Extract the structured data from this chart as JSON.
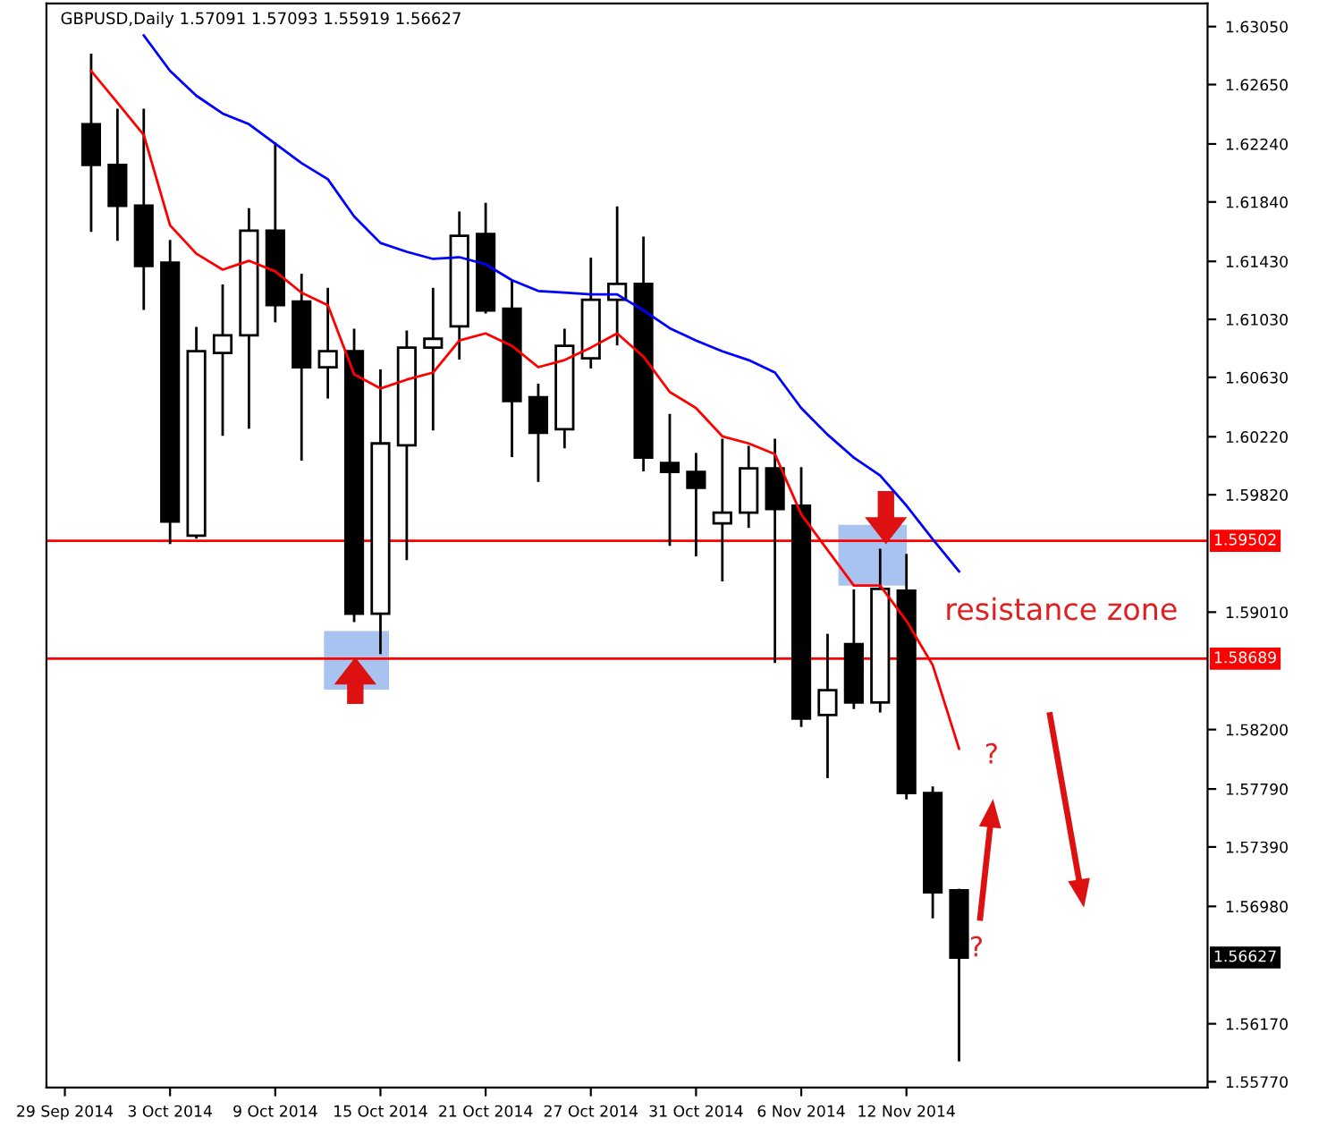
{
  "chart_data": {
    "type": "candlestick",
    "title": "GBPUSD,Daily 1.57091 1.57093 1.55919 1.56627",
    "categories": [
      "29 Sep 2014",
      null,
      null,
      null,
      "3 Oct 2014",
      null,
      null,
      null,
      "9 Oct 2014",
      null,
      null,
      null,
      "15 Oct 2014",
      null,
      null,
      null,
      "21 Oct 2014",
      null,
      null,
      null,
      "27 Oct 2014",
      null,
      null,
      null,
      "31 Oct 2014",
      null,
      null,
      null,
      "6 Nov 2014",
      null,
      null,
      null,
      "12 Nov 2014",
      null,
      null
    ],
    "ohlc": [
      null,
      [
        1.62377,
        1.62854,
        1.61642,
        1.62095
      ],
      [
        1.62095,
        1.62475,
        1.61581,
        1.61814
      ],
      [
        1.61814,
        1.62475,
        1.61104,
        1.61398
      ],
      [
        1.61422,
        1.61569,
        1.59488,
        1.59635
      ],
      [
        1.59537,
        1.60969,
        1.59525,
        1.6081
      ],
      [
        1.60798,
        1.61263,
        1.60235,
        1.6092
      ],
      [
        1.6092,
        1.61789,
        1.60284,
        1.61642
      ],
      [
        1.61642,
        1.62242,
        1.61018,
        1.61128
      ],
      [
        1.61153,
        1.61336,
        1.60064,
        1.607
      ],
      [
        1.607,
        1.61239,
        1.60492,
        1.6081
      ],
      [
        1.6081,
        1.60957,
        1.5895,
        1.58999
      ],
      [
        1.58999,
        1.60676,
        1.58729,
        1.60174
      ],
      [
        1.60161,
        1.60945,
        1.59378,
        1.60835
      ],
      [
        1.60835,
        1.61239,
        1.60272,
        1.60896
      ],
      [
        1.60981,
        1.61765,
        1.60761,
        1.61606
      ],
      [
        1.61618,
        1.61826,
        1.61079,
        1.61092
      ],
      [
        1.61104,
        1.61287,
        1.60088,
        1.60467
      ],
      [
        1.60492,
        1.60578,
        1.59917,
        1.60247
      ],
      [
        1.60272,
        1.60957,
        1.60149,
        1.60847
      ],
      [
        1.60761,
        1.61447,
        1.607,
        1.61165
      ],
      [
        1.61165,
        1.61801,
        1.60859,
        1.61275
      ],
      [
        1.61275,
        1.61593,
        1.5999,
        1.60076
      ],
      [
        1.60039,
        1.60369,
        1.59476,
        1.59978
      ],
      [
        1.59978,
        1.601,
        1.59403,
        1.59868
      ],
      [
        1.59623,
        1.60198,
        1.59231,
        1.59696
      ],
      [
        1.59696,
        1.60149,
        1.596,
        1.60002
      ],
      [
        1.60002,
        1.60198,
        1.58668,
        1.59721
      ],
      [
        1.59745,
        1.60002,
        1.58227,
        1.58276
      ],
      [
        1.58301,
        1.58852,
        1.57873,
        1.58472
      ],
      [
        1.5879,
        1.59158,
        1.5835,
        1.58387
      ],
      [
        1.58387,
        1.59439,
        1.58326,
        1.5917
      ],
      [
        1.59158,
        1.59403,
        1.57726,
        1.57762
      ],
      [
        1.57762,
        1.57799,
        1.56906,
        1.57077
      ],
      [
        1.57091,
        1.57093,
        1.55919,
        1.56627
      ]
    ],
    "series": [
      {
        "type": "line",
        "color": "#ff0000",
        "values": [
          null,
          1.62744,
          1.62524,
          1.62303,
          1.61679,
          1.61483,
          1.61373,
          1.61434,
          1.61361,
          1.61214,
          1.61128,
          1.60651,
          1.60553,
          1.60614,
          1.60663,
          1.60884,
          1.60933,
          1.60847,
          1.607,
          1.60749,
          1.60835,
          1.60933,
          1.60773,
          1.60529,
          1.60418,
          1.60223,
          1.60174,
          1.601,
          1.59684,
          1.59439,
          1.59194,
          1.59194,
          1.5895,
          1.58644,
          1.58068
        ]
      },
      {
        "type": "line",
        "color": "#0000ff",
        "values": [
          null,
          null,
          null,
          1.62989,
          1.62744,
          1.62573,
          1.6245,
          1.62377,
          1.62242,
          1.62108,
          1.61997,
          1.6174,
          1.61557,
          1.61496,
          1.61447,
          1.61459,
          1.6141,
          1.613,
          1.61226,
          1.61214,
          1.61202,
          1.61202,
          1.61092,
          1.60969,
          1.60884,
          1.6081,
          1.60749,
          1.60663,
          1.60418,
          1.60235,
          1.60076,
          1.59953,
          1.59745,
          1.59513,
          1.59292
        ]
      }
    ],
    "ylim": [
      1.5573,
      1.6321
    ],
    "yticks": [
      {
        "value": 1.6305,
        "label": "1.63050"
      },
      {
        "value": 1.6265,
        "label": "1.62650"
      },
      {
        "value": 1.6224,
        "label": "1.62240"
      },
      {
        "value": 1.6184,
        "label": "1.61840"
      },
      {
        "value": 1.6143,
        "label": "1.61430"
      },
      {
        "value": 1.6103,
        "label": "1.61030"
      },
      {
        "value": 1.6063,
        "label": "1.60630"
      },
      {
        "value": 1.6022,
        "label": "1.60220"
      },
      {
        "value": 1.5982,
        "label": "1.59820"
      },
      {
        "value": 1.5901,
        "label": "1.59010"
      },
      {
        "value": 1.582,
        "label": "1.58200"
      },
      {
        "value": 1.5779,
        "label": "1.57790"
      },
      {
        "value": 1.5739,
        "label": "1.57390"
      },
      {
        "value": 1.5698,
        "label": "1.56980"
      },
      {
        "value": 1.5617,
        "label": "1.56170"
      },
      {
        "value": 1.5577,
        "label": "1.55770"
      }
    ],
    "ref_lines": [
      {
        "axis": "y",
        "value": 1.59502,
        "label": "1.59502",
        "color": "#ff0000"
      },
      {
        "axis": "y",
        "value": 1.58689,
        "label": "1.58689",
        "color": "#ff0000"
      }
    ],
    "annotations": [
      "resistance zone",
      "?",
      "?",
      "1.56627"
    ],
    "grid": false,
    "legend": false
  }
}
